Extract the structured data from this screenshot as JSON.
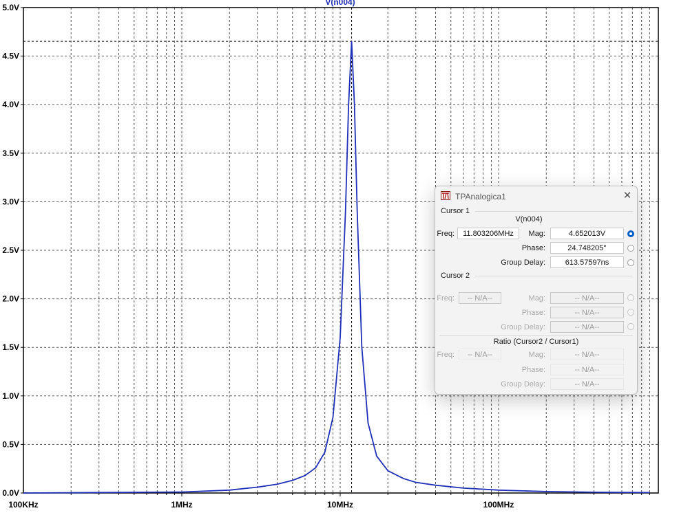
{
  "chart_data": {
    "type": "line",
    "trace_label": "V(n004)",
    "y_ticks": [
      "0.0V",
      "0.5V",
      "1.0V",
      "1.5V",
      "2.0V",
      "2.5V",
      "3.0V",
      "3.5V",
      "4.0V",
      "4.5V",
      "5.0V"
    ],
    "x_ticks": [
      "100KHz",
      "1MHz",
      "10MHz",
      "100MHz"
    ],
    "x_scale": "log",
    "x_range_hz": [
      100000,
      900000000
    ],
    "y_range_v": [
      0,
      5
    ],
    "grid": true,
    "series": [
      {
        "name": "V(n004)",
        "color": "#1f2fb8",
        "points_hz_v": [
          [
            100000,
            0.0
          ],
          [
            1000000,
            0.01
          ],
          [
            2000000,
            0.03
          ],
          [
            3000000,
            0.06
          ],
          [
            4000000,
            0.09
          ],
          [
            5000000,
            0.13
          ],
          [
            6000000,
            0.18
          ],
          [
            7000000,
            0.26
          ],
          [
            8000000,
            0.42
          ],
          [
            9000000,
            0.78
          ],
          [
            10000000,
            1.6
          ],
          [
            10800000,
            2.9
          ],
          [
            11300000,
            4.0
          ],
          [
            11803206,
            4.652013
          ],
          [
            12300000,
            4.0
          ],
          [
            12800000,
            2.9
          ],
          [
            13700000,
            1.5
          ],
          [
            15000000,
            0.72
          ],
          [
            17000000,
            0.38
          ],
          [
            20000000,
            0.23
          ],
          [
            25000000,
            0.15
          ],
          [
            30000000,
            0.11
          ],
          [
            40000000,
            0.08
          ],
          [
            60000000,
            0.05
          ],
          [
            100000000,
            0.03
          ],
          [
            200000000,
            0.015
          ],
          [
            400000000,
            0.008
          ],
          [
            900000000,
            0.004
          ]
        ]
      }
    ],
    "cursor1": {
      "freq_hz": 11803206,
      "mag_v": 4.652013
    }
  },
  "dialog": {
    "title": "TPAnalogica1",
    "close_glyph": "✕",
    "cursor1": {
      "section": "Cursor 1",
      "trace": "V(n004)",
      "freq_label": "Freq:",
      "freq_value": "11.803206MHz",
      "mag_label": "Mag:",
      "mag_value": "4.652013V",
      "phase_label": "Phase:",
      "phase_value": "24.748205°",
      "gd_label": "Group Delay:",
      "gd_value": "613.57597ns",
      "selected_radio": "mag"
    },
    "cursor2": {
      "section": "Cursor 2",
      "freq_label": "Freq:",
      "freq_value": "-- N/A--",
      "mag_label": "Mag:",
      "mag_value": "-- N/A--",
      "phase_label": "Phase:",
      "phase_value": "-- N/A--",
      "gd_label": "Group Delay:",
      "gd_value": "-- N/A--"
    },
    "ratio": {
      "section": "Ratio (Cursor2 / Cursor1)",
      "freq_label": "Freq:",
      "freq_value": "-- N/A--",
      "mag_label": "Mag:",
      "mag_value": "-- N/A--",
      "phase_label": "Phase:",
      "phase_value": "-- N/A--",
      "gd_label": "Group Delay:",
      "gd_value": "-- N/A--"
    }
  }
}
